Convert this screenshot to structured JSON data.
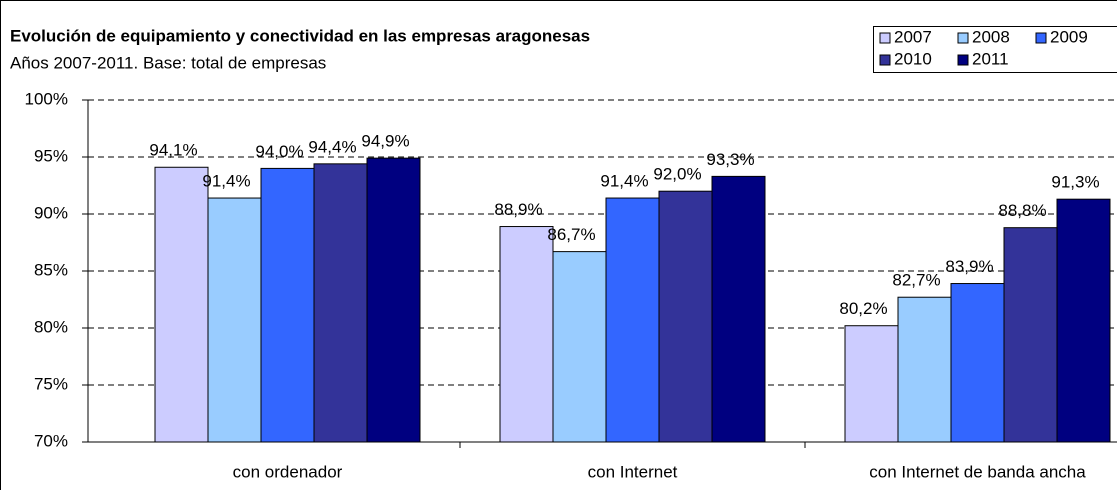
{
  "chart_data": {
    "type": "bar",
    "title": "Evolución de equipamiento y conectividad en las empresas aragonesas",
    "subtitle": "Años 2007-2011. Base: total de empresas",
    "categories": [
      "con ordenador",
      "con Internet",
      "con Internet de banda ancha"
    ],
    "series": [
      {
        "name": "2007",
        "color": "#ccccff",
        "values": [
          94.1,
          88.9,
          80.2
        ],
        "value_labels": [
          "94,1%",
          "88,9%",
          "80,2%"
        ]
      },
      {
        "name": "2008",
        "color": "#99ccff",
        "values": [
          91.4,
          86.7,
          82.7
        ],
        "value_labels": [
          "91,4%",
          "86,7%",
          "82,7%"
        ]
      },
      {
        "name": "2009",
        "color": "#3366ff",
        "values": [
          94.0,
          91.4,
          83.9
        ],
        "value_labels": [
          "94,0%",
          "91,4%",
          "83,9%"
        ]
      },
      {
        "name": "2010",
        "color": "#333399",
        "values": [
          94.4,
          92.0,
          88.8
        ],
        "value_labels": [
          "94,4%",
          "92,0%",
          "88,8%"
        ]
      },
      {
        "name": "2011",
        "color": "#000080",
        "values": [
          94.9,
          93.3,
          91.3
        ],
        "value_labels": [
          "94,9%",
          "93,3%",
          "91,3%"
        ]
      }
    ],
    "ylim": [
      70,
      100
    ],
    "yticks": [
      {
        "value": 70,
        "label": "70%"
      },
      {
        "value": 75,
        "label": "75%"
      },
      {
        "value": 80,
        "label": "80%"
      },
      {
        "value": 85,
        "label": "85%"
      },
      {
        "value": 90,
        "label": "90%"
      },
      {
        "value": 95,
        "label": "95%"
      },
      {
        "value": 100,
        "label": "100%"
      }
    ],
    "grid": true,
    "legend": "top-right"
  }
}
